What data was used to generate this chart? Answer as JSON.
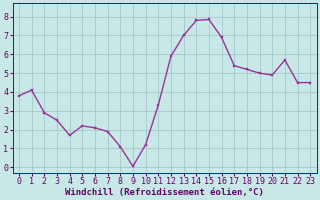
{
  "x": [
    0,
    1,
    2,
    3,
    4,
    5,
    6,
    7,
    8,
    9,
    10,
    11,
    12,
    13,
    14,
    15,
    16,
    17,
    18,
    19,
    20,
    21,
    22,
    23
  ],
  "y": [
    3.8,
    4.1,
    2.9,
    2.5,
    1.7,
    2.2,
    2.1,
    1.9,
    1.1,
    0.05,
    1.2,
    3.3,
    5.9,
    7.0,
    7.8,
    7.85,
    6.9,
    5.4,
    5.2,
    5.0,
    4.9,
    5.7,
    4.5,
    4.5
  ],
  "line_color": "#993399",
  "marker_color": "#993399",
  "bg_color": "#c8e8e8",
  "grid_color": "#aacccc",
  "xlabel": "Windchill (Refroidissement éolien,°C)",
  "ylim": [
    -0.3,
    8.7
  ],
  "xlim": [
    -0.5,
    23.5
  ],
  "yticks": [
    0,
    1,
    2,
    3,
    4,
    5,
    6,
    7,
    8
  ],
  "xtick_labels": [
    "0",
    "1",
    "2",
    "3",
    "4",
    "5",
    "6",
    "7",
    "8",
    "9",
    "10",
    "11",
    "12",
    "13",
    "14",
    "15",
    "16",
    "17",
    "18",
    "19",
    "20",
    "21",
    "22",
    "23"
  ],
  "xlabel_fontsize": 6.5,
  "tick_fontsize": 6,
  "line_width": 1.0,
  "marker_size": 2.0,
  "label_color": "#660066"
}
